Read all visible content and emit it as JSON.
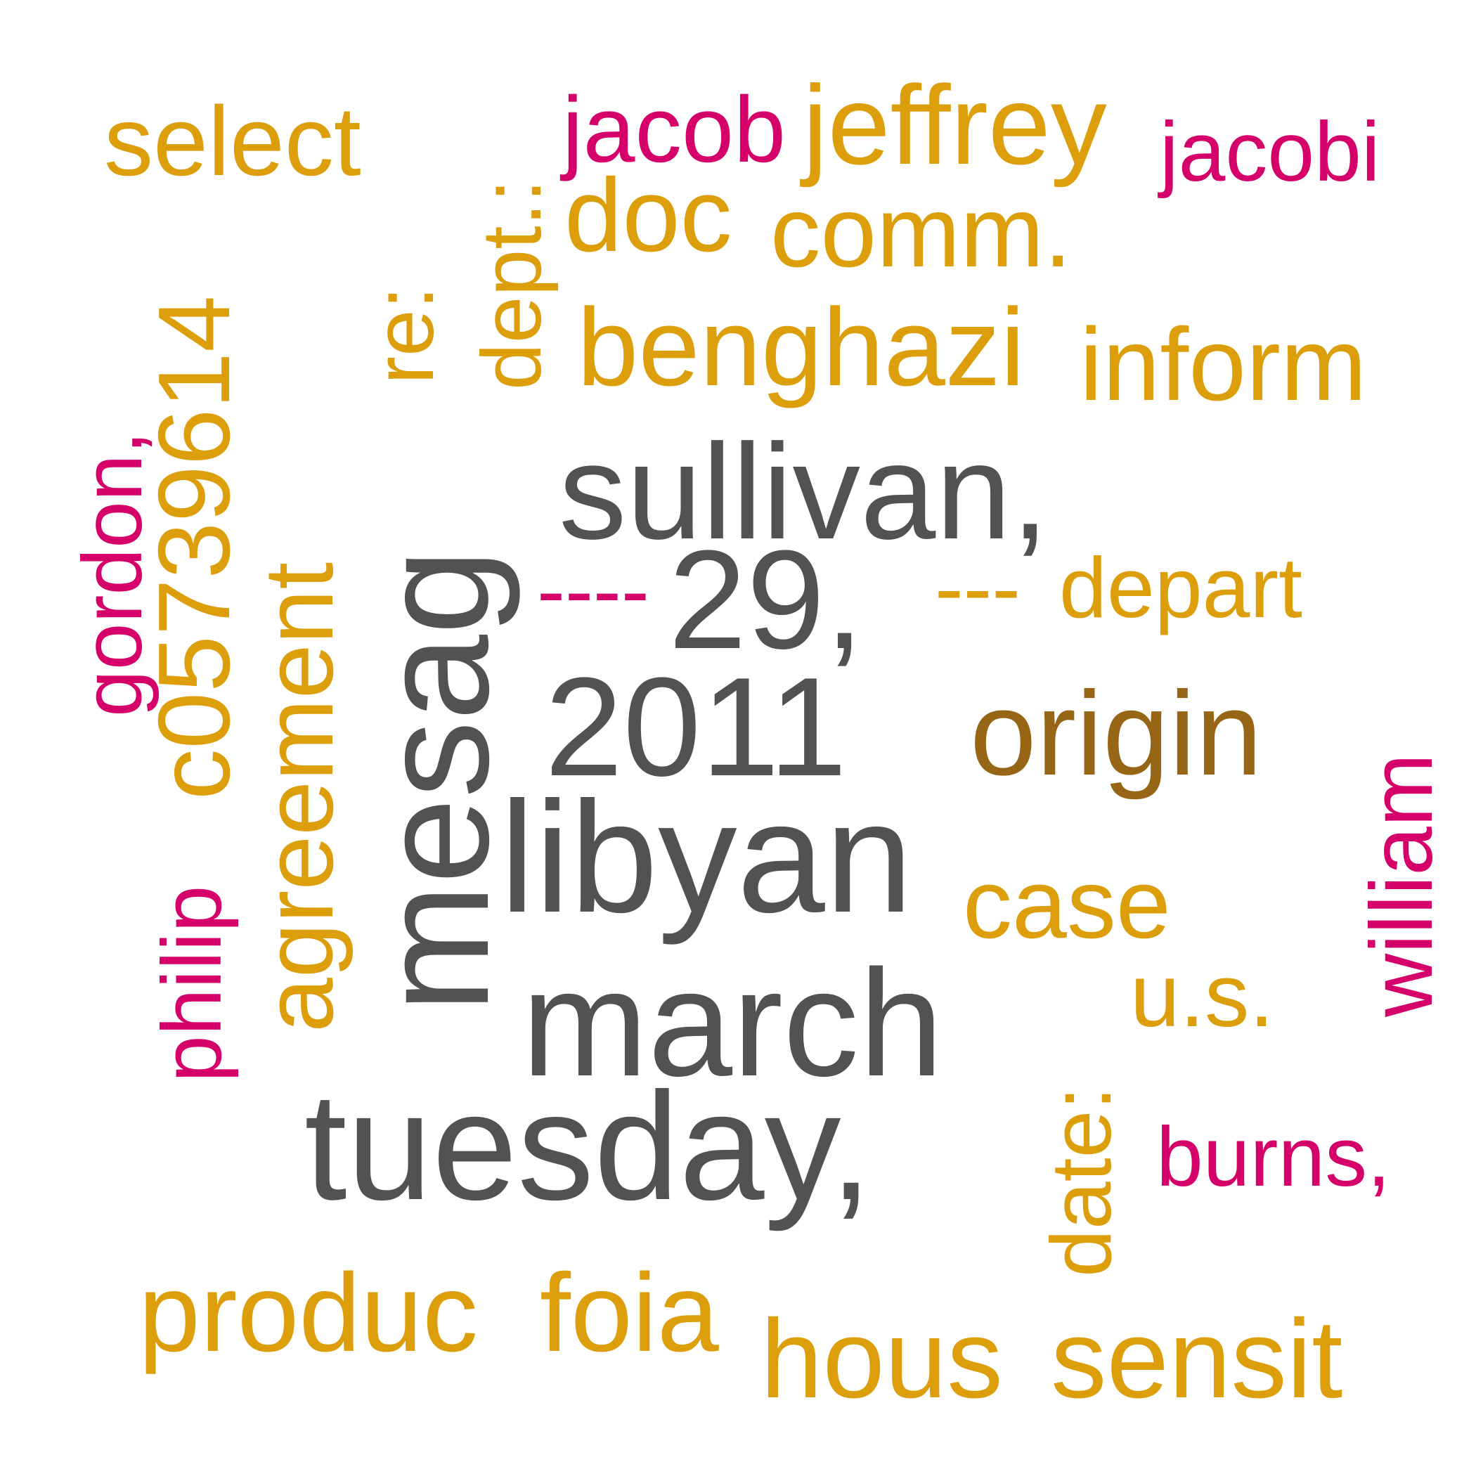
{
  "colors": {
    "gray": "#525252",
    "orange": "#dd9e0b",
    "brown": "#966516",
    "magenta": "#d5006a",
    "background": "#ffffff"
  },
  "words": {
    "sullivan": "sullivan,",
    "twenty_nine": "29,",
    "year": "2011",
    "libyan": "libyan",
    "march": "march",
    "tuesday": "tuesday,",
    "mesag": "mesag",
    "select": "select",
    "dept": "dept.:",
    "jeffrey": "jeffrey",
    "doc": "doc",
    "comm": "comm.",
    "re": "re:",
    "number": "c05739614",
    "benghazi": "benghazi",
    "inform": "inform",
    "agreement": "agreement",
    "dashes_three": "---",
    "depart": "depart",
    "case": "case",
    "date": "date:",
    "us": "u.s.",
    "produc": "produc",
    "foia": "foia",
    "hous": "hous",
    "sensit": "sensit",
    "origin": "origin",
    "jacob": "jacob",
    "jacobi": "jacobi",
    "gordon": "gordon,",
    "dashes_four": "----",
    "philip": "philip",
    "william": "william",
    "burns": "burns,"
  }
}
